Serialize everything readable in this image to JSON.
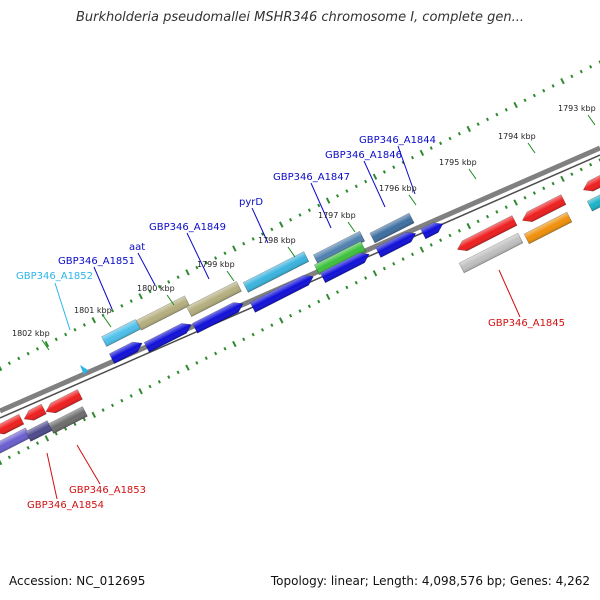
{
  "title": "Burkholderia pseudomallei MSHR346 chromosome I, complete gen...",
  "footer": {
    "accession": "Accession: NC_012695",
    "topology": "Topology: linear; Length: 4,098,576 bp; Genes: 4,262"
  },
  "colors": {
    "backbone": "#808080",
    "scale_ticks": "#2f8a2f",
    "label_forward": "#0a0ac8",
    "label_reverse": "#d01010",
    "label_selected": "#2bb5e8"
  },
  "scale": {
    "unit": "kbp",
    "labels": [
      "1793 kbp",
      "1794 kbp",
      "1795 kbp",
      "1796 kbp",
      "1797 kbp",
      "1798 kbp",
      "1799 kbp",
      "1800 kbp",
      "1801 kbp",
      "1802 kbp"
    ]
  },
  "genes": {
    "forward_labels": [
      "GBP346_A1844",
      "GBP346_A1846",
      "GBP346_A1847",
      "pyrD",
      "GBP346_A1849",
      "aat",
      "GBP346_A1851"
    ],
    "selected_label": "GBP346_A1852",
    "reverse_labels": [
      "GBP346_A1845",
      "GBP346_A1853",
      "GBP346_A1854"
    ]
  }
}
